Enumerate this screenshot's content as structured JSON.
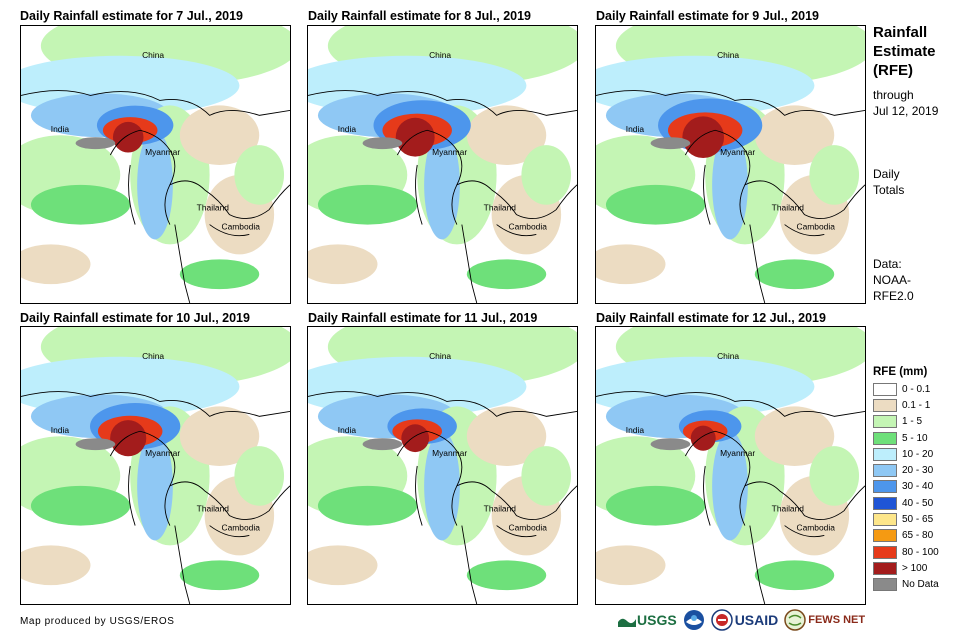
{
  "panels": [
    {
      "title": "Daily Rainfall estimate for 7 Jul., 2019"
    },
    {
      "title": "Daily Rainfall estimate for 8 Jul., 2019"
    },
    {
      "title": "Daily Rainfall estimate for 9 Jul., 2019"
    },
    {
      "title": "Daily Rainfall estimate for 10 Jul., 2019"
    },
    {
      "title": "Daily Rainfall estimate for 11 Jul., 2019"
    },
    {
      "title": "Daily Rainfall estimate for 12 Jul., 2019"
    }
  ],
  "map_labels": {
    "china": "China",
    "india": "India",
    "myanmar": "Myanmar",
    "thailand": "Thailand",
    "cambodia": "Cambodia"
  },
  "side": {
    "title_line1": "Rainfall",
    "title_line2": "Estimate",
    "title_line3": "(RFE)",
    "through": "through",
    "date": "Jul 12, 2019",
    "daily": "Daily",
    "totals": "Totals",
    "data_label": "Data:",
    "data_source1": "NOAA-",
    "data_source2": "RFE2.0"
  },
  "legend": {
    "title": "RFE (mm)",
    "items": [
      {
        "label": "0 - 0.1",
        "color": "#ffffff"
      },
      {
        "label": "0.1 - 1",
        "color": "#ecdcc2"
      },
      {
        "label": "1 - 5",
        "color": "#c4f5b4"
      },
      {
        "label": "5 - 10",
        "color": "#6ee07a"
      },
      {
        "label": "10 - 20",
        "color": "#bdeefc"
      },
      {
        "label": "20 - 30",
        "color": "#8fc8f4"
      },
      {
        "label": "30 - 40",
        "color": "#4d96ec"
      },
      {
        "label": "40 - 50",
        "color": "#1f55d6"
      },
      {
        "label": "50 - 65",
        "color": "#fde68a"
      },
      {
        "label": "65 - 80",
        "color": "#f59a12"
      },
      {
        "label": "80 - 100",
        "color": "#e63a1a"
      },
      {
        "label": "> 100",
        "color": "#a31c1c"
      },
      {
        "label": "No Data",
        "color": "#8a8a8a"
      }
    ]
  },
  "credit": "Map produced by USGS/EROS",
  "logos": {
    "usgs": "USGS",
    "usaid": "USAID",
    "fewsnet": "FEWS NET"
  }
}
